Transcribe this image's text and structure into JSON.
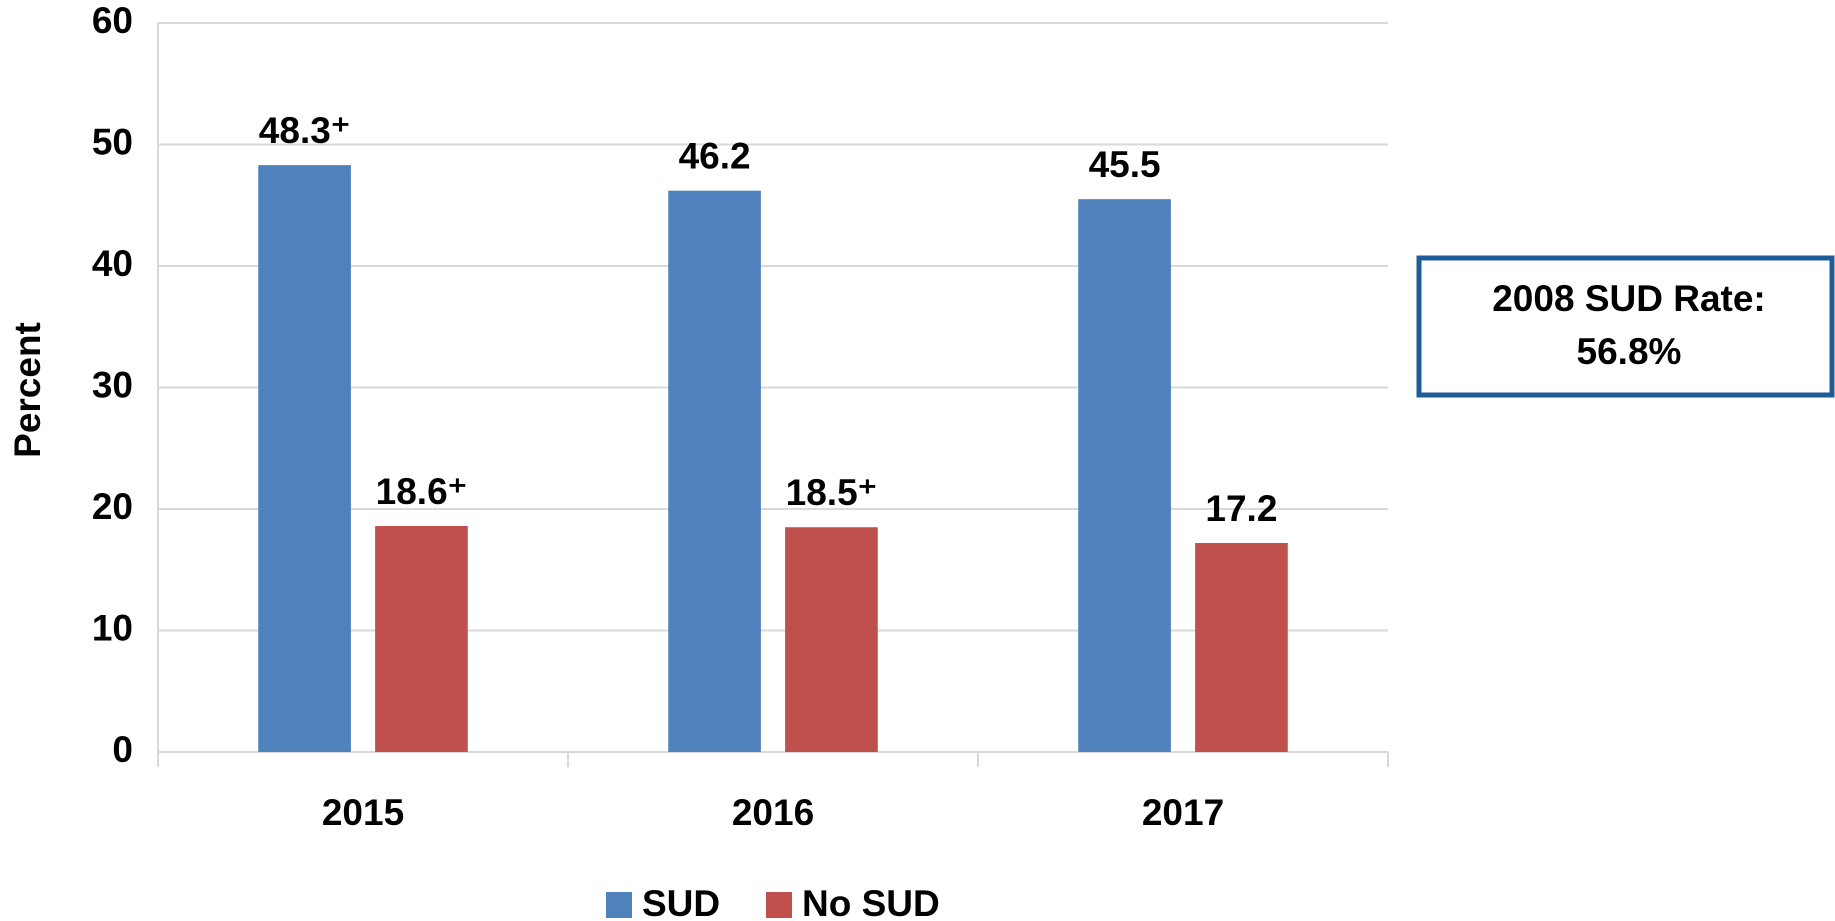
{
  "chart_data": {
    "type": "bar",
    "y_label": "Percent",
    "categories": [
      "2015",
      "2016",
      "2017"
    ],
    "series": [
      {
        "name": "SUD",
        "color": "#4f81bd",
        "values": [
          48.3,
          46.2,
          45.5
        ],
        "value_labels": [
          "48.3⁺",
          "46.2",
          "45.5"
        ]
      },
      {
        "name": "No SUD",
        "color": "#c0504d",
        "values": [
          18.6,
          18.5,
          17.2
        ],
        "value_labels": [
          "18.6⁺",
          "18.5⁺",
          "17.2"
        ]
      }
    ],
    "ylim": [
      0,
      60
    ],
    "yticks": [
      0,
      10,
      20,
      30,
      40,
      50,
      60
    ],
    "grid": true,
    "annotation": [
      "2008 SUD Rate:",
      "56.8%"
    ]
  }
}
